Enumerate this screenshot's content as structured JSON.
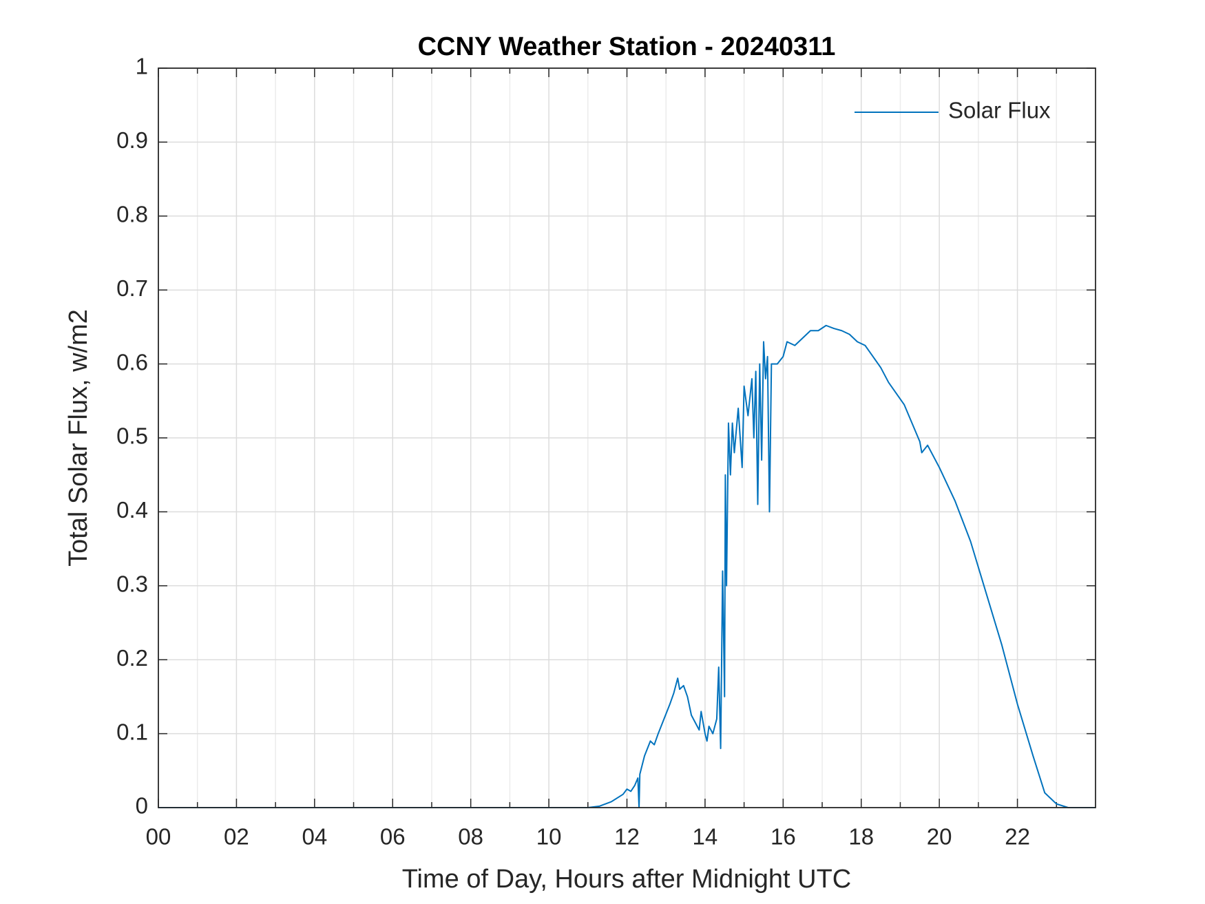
{
  "chart_data": {
    "type": "line",
    "title": "CCNY Weather Station - 20240311",
    "xlabel": "Time of Day, Hours after Midnight UTC",
    "ylabel": "Total Solar Flux, w/m2",
    "x": [
      0,
      11,
      11.3,
      11.6,
      11.9,
      12.0,
      12.1,
      12.2,
      12.28,
      12.31,
      12.33,
      12.45,
      12.6,
      12.7,
      12.8,
      12.95,
      13.1,
      13.2,
      13.3,
      13.35,
      13.45,
      13.55,
      13.65,
      13.75,
      13.85,
      13.9,
      14.0,
      14.05,
      14.1,
      14.2,
      14.3,
      14.35,
      14.4,
      14.45,
      14.5,
      14.52,
      14.55,
      14.6,
      14.65,
      14.7,
      14.75,
      14.85,
      14.95,
      15.0,
      15.1,
      15.2,
      15.25,
      15.3,
      15.35,
      15.4,
      15.45,
      15.5,
      15.55,
      15.6,
      15.65,
      15.7,
      15.85,
      16.0,
      16.1,
      16.3,
      16.5,
      16.7,
      16.9,
      17.1,
      17.3,
      17.5,
      17.7,
      17.9,
      18.1,
      18.3,
      18.5,
      18.7,
      18.9,
      19.1,
      19.3,
      19.5,
      19.55,
      19.7,
      20.0,
      20.4,
      20.8,
      21.2,
      21.6,
      22.0,
      22.4,
      22.7,
      23.0,
      23.3,
      24
    ],
    "series": [
      {
        "name": "Solar Flux",
        "color": "#0072bd",
        "values": [
          0,
          0,
          0.002,
          0.008,
          0.018,
          0.025,
          0.022,
          0.03,
          0.04,
          0,
          0.045,
          0.07,
          0.09,
          0.085,
          0.1,
          0.12,
          0.14,
          0.155,
          0.175,
          0.16,
          0.165,
          0.15,
          0.125,
          0.115,
          0.105,
          0.13,
          0.1,
          0.09,
          0.11,
          0.1,
          0.12,
          0.19,
          0.08,
          0.32,
          0.15,
          0.45,
          0.3,
          0.52,
          0.45,
          0.52,
          0.48,
          0.54,
          0.46,
          0.57,
          0.53,
          0.58,
          0.5,
          0.59,
          0.41,
          0.6,
          0.47,
          0.63,
          0.58,
          0.61,
          0.4,
          0.6,
          0.6,
          0.61,
          0.63,
          0.625,
          0.635,
          0.645,
          0.645,
          0.652,
          0.648,
          0.645,
          0.64,
          0.63,
          0.625,
          0.61,
          0.595,
          0.575,
          0.56,
          0.545,
          0.52,
          0.495,
          0.48,
          0.49,
          0.46,
          0.415,
          0.36,
          0.29,
          0.22,
          0.14,
          0.07,
          0.02,
          0.005,
          0,
          0
        ]
      }
    ],
    "xlim": [
      0,
      24
    ],
    "xticks": [
      {
        "value": 0,
        "label": "00"
      },
      {
        "value": 2,
        "label": "02"
      },
      {
        "value": 4,
        "label": "04"
      },
      {
        "value": 6,
        "label": "06"
      },
      {
        "value": 8,
        "label": "08"
      },
      10,
      12,
      14,
      16,
      18,
      20,
      22
    ],
    "ylim": [
      0,
      1
    ],
    "yticks": [
      0,
      0.1,
      0.2,
      0.3,
      0.4,
      0.5,
      0.6,
      0.7,
      0.8,
      0.9,
      1
    ],
    "grid": true,
    "minor_grid": true,
    "legend": "upper right"
  }
}
